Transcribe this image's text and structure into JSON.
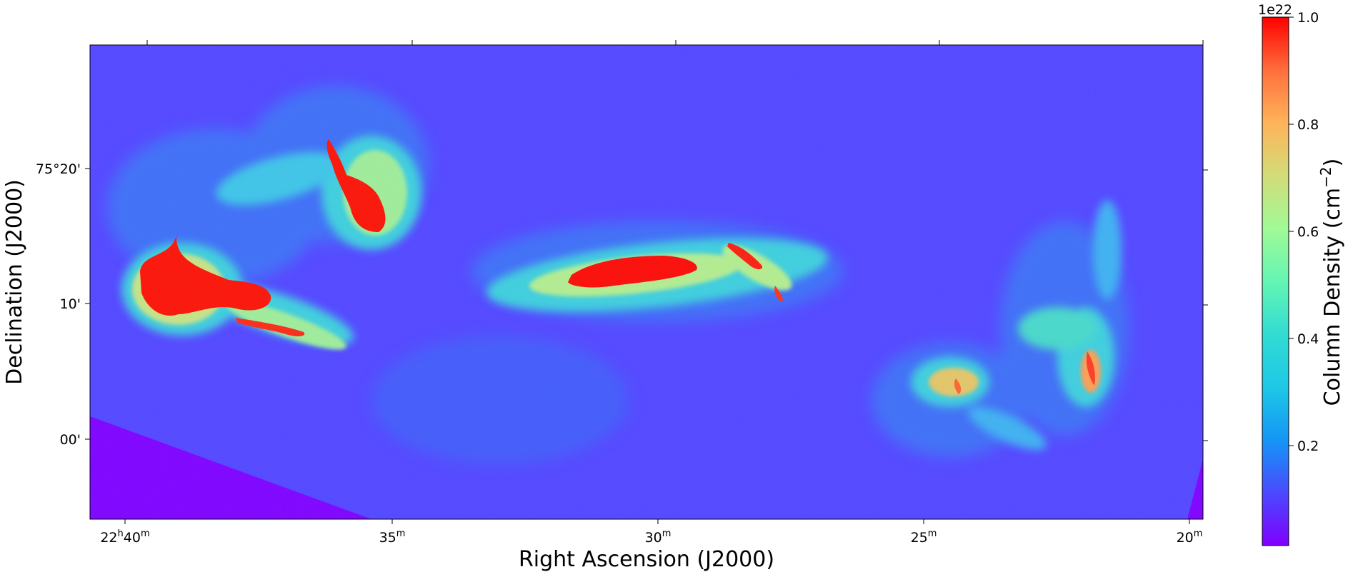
{
  "figure": {
    "type": "astronomical column density map",
    "colormap": "rainbow",
    "xlabel": "Right Ascension (J2000)",
    "ylabel": "Declination (J2000)",
    "x_ticks": [
      {
        "h": "22",
        "m": "40",
        "label_main": "22",
        "sup_h": "h",
        "label_min": "40",
        "sup_m": "m"
      },
      {
        "m": "35",
        "label_min": "35",
        "sup_m": "m"
      },
      {
        "m": "30",
        "label_min": "30",
        "sup_m": "m"
      },
      {
        "m": "25",
        "label_min": "25",
        "sup_m": "m"
      },
      {
        "m": "20",
        "label_min": "20",
        "sup_m": "m"
      }
    ],
    "y_ticks": [
      "75°20'",
      "10'",
      "00'"
    ],
    "colorbar": {
      "label": "Column Density (cm",
      "label_sup": "−2",
      "label_end": ")",
      "multiplier": "1e22",
      "range": [
        0,
        1.0
      ],
      "ticks": [
        "0.2",
        "0.4",
        "0.6",
        "0.8",
        "1.0"
      ],
      "gradient": [
        "#8000ff",
        "#4a4aff",
        "#1496f5",
        "#1ec8e6",
        "#4ef0c8",
        "#86fea0",
        "#b4f082",
        "#e6c864",
        "#ff9650",
        "#ff5a32",
        "#ff0000"
      ]
    }
  }
}
